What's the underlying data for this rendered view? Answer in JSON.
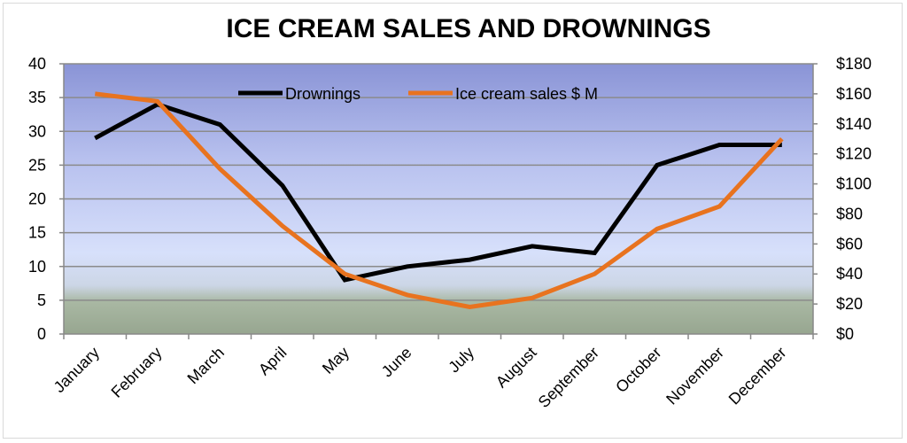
{
  "chart_data": {
    "type": "line",
    "title": "ICE CREAM SALES AND DROWNINGS",
    "categories": [
      "January",
      "February",
      "March",
      "April",
      "May",
      "June",
      "July",
      "August",
      "September",
      "October",
      "November",
      "December"
    ],
    "y_left": {
      "min": 0,
      "max": 40,
      "step": 5,
      "ticks": [
        "0",
        "5",
        "10",
        "15",
        "20",
        "25",
        "30",
        "35",
        "40"
      ]
    },
    "y_right": {
      "min": 0,
      "max": 180,
      "step": 20,
      "ticks": [
        "$0",
        "$20",
        "$40",
        "$60",
        "$80",
        "$100",
        "$120",
        "$140",
        "$160",
        "$180"
      ]
    },
    "grid": true,
    "legend_position": "top-center",
    "series": [
      {
        "name": "Drownings",
        "axis": "left",
        "color": "#000000",
        "values": [
          29,
          34,
          31,
          22,
          8,
          10,
          11,
          13,
          12,
          25,
          28,
          28
        ]
      },
      {
        "name": "Ice cream sales $ M",
        "axis": "right",
        "color": "#e8731f",
        "values": [
          160,
          155,
          110,
          72,
          40,
          26,
          18,
          24,
          40,
          70,
          85,
          130
        ]
      }
    ]
  }
}
